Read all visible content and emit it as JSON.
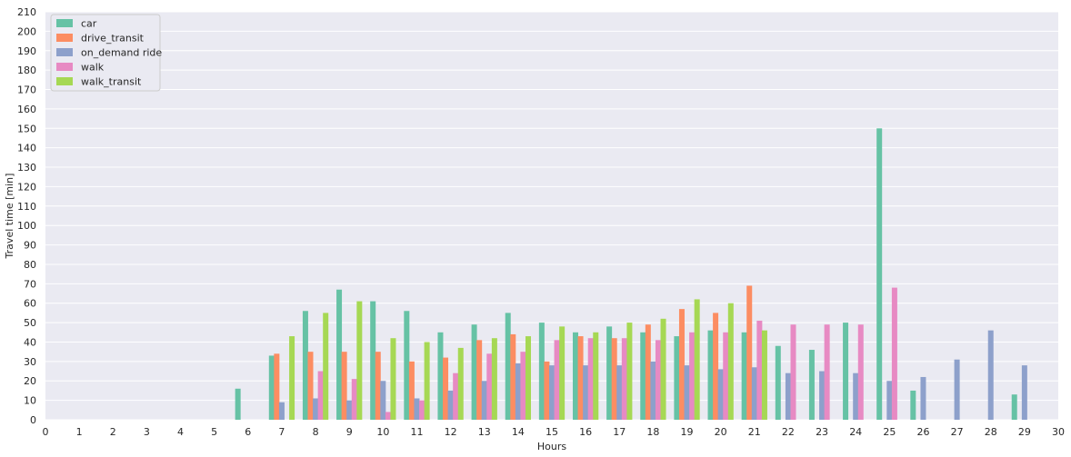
{
  "chart_data": {
    "type": "bar",
    "xlabel": "Hours",
    "ylabel": "Travel time [min]",
    "xlim": [
      0,
      30
    ],
    "ylim": [
      0,
      210
    ],
    "yticks": [
      0,
      10,
      20,
      30,
      40,
      50,
      60,
      70,
      80,
      90,
      100,
      110,
      120,
      130,
      140,
      150,
      160,
      170,
      180,
      190,
      200,
      210
    ],
    "xticks": [
      0,
      1,
      2,
      3,
      4,
      5,
      6,
      7,
      8,
      9,
      10,
      11,
      12,
      13,
      14,
      15,
      16,
      17,
      18,
      19,
      20,
      21,
      22,
      23,
      24,
      25,
      26,
      27,
      28,
      29,
      30
    ],
    "grid": true,
    "legend_position": "top-left",
    "background": "#eaeaf2",
    "series": [
      {
        "name": "car",
        "color": "#66c2a5",
        "points": [
          [
            5.7,
            16
          ],
          [
            6.7,
            33
          ],
          [
            7.7,
            56
          ],
          [
            8.7,
            67
          ],
          [
            9.7,
            61
          ],
          [
            10.7,
            56
          ],
          [
            11.7,
            45
          ],
          [
            12.7,
            49
          ],
          [
            13.7,
            55
          ],
          [
            14.7,
            50
          ],
          [
            15.7,
            45
          ],
          [
            16.7,
            48
          ],
          [
            17.7,
            45
          ],
          [
            18.7,
            43
          ],
          [
            19.7,
            46
          ],
          [
            20.7,
            45
          ],
          [
            21.7,
            38
          ],
          [
            22.7,
            36
          ],
          [
            23.7,
            50
          ],
          [
            24.7,
            150
          ],
          [
            25.7,
            15
          ],
          [
            28.7,
            13
          ]
        ]
      },
      {
        "name": "drive_transit",
        "color": "#fc8d62",
        "points": [
          [
            6.85,
            34
          ],
          [
            7.85,
            35
          ],
          [
            8.85,
            35
          ],
          [
            9.85,
            35
          ],
          [
            10.85,
            30
          ],
          [
            11.85,
            32
          ],
          [
            12.85,
            41
          ],
          [
            13.85,
            44
          ],
          [
            14.85,
            30
          ],
          [
            15.85,
            43
          ],
          [
            16.85,
            42
          ],
          [
            17.85,
            49
          ],
          [
            18.85,
            57
          ],
          [
            19.85,
            55
          ],
          [
            20.85,
            69
          ]
        ]
      },
      {
        "name": "on_demand ride",
        "color": "#8da0cb",
        "points": [
          [
            7,
            9
          ],
          [
            8,
            11
          ],
          [
            9,
            10
          ],
          [
            10,
            20
          ],
          [
            11,
            11
          ],
          [
            12,
            15
          ],
          [
            13,
            20
          ],
          [
            14,
            29
          ],
          [
            15,
            28
          ],
          [
            16,
            28
          ],
          [
            17,
            28
          ],
          [
            18,
            30
          ],
          [
            19,
            28
          ],
          [
            20,
            26
          ],
          [
            21,
            27
          ],
          [
            22,
            24
          ],
          [
            23,
            25
          ],
          [
            24,
            24
          ],
          [
            25,
            20
          ],
          [
            26,
            22
          ],
          [
            27,
            31
          ],
          [
            28,
            46
          ],
          [
            29,
            28
          ]
        ]
      },
      {
        "name": "walk",
        "color": "#e78ac3",
        "points": [
          [
            8.15,
            25
          ],
          [
            9.15,
            21
          ],
          [
            10.15,
            4
          ],
          [
            11.15,
            10
          ],
          [
            12.15,
            24
          ],
          [
            13.15,
            34
          ],
          [
            14.15,
            35
          ],
          [
            15.15,
            41
          ],
          [
            16.15,
            42
          ],
          [
            17.15,
            42
          ],
          [
            18.15,
            41
          ],
          [
            19.15,
            45
          ],
          [
            20.15,
            45
          ],
          [
            21.15,
            51
          ],
          [
            22.15,
            49
          ],
          [
            23.15,
            49
          ],
          [
            24.15,
            49
          ],
          [
            25.15,
            68
          ]
        ]
      },
      {
        "name": "walk_transit",
        "color": "#a6d854",
        "points": [
          [
            7.3,
            43
          ],
          [
            8.3,
            55
          ],
          [
            9.3,
            61
          ],
          [
            10.3,
            42
          ],
          [
            11.3,
            40
          ],
          [
            12.3,
            37
          ],
          [
            13.3,
            42
          ],
          [
            14.3,
            43
          ],
          [
            15.3,
            48
          ],
          [
            16.3,
            45
          ],
          [
            17.3,
            50
          ],
          [
            18.3,
            52
          ],
          [
            19.3,
            62
          ],
          [
            20.3,
            60
          ],
          [
            21.3,
            46
          ]
        ]
      }
    ]
  }
}
